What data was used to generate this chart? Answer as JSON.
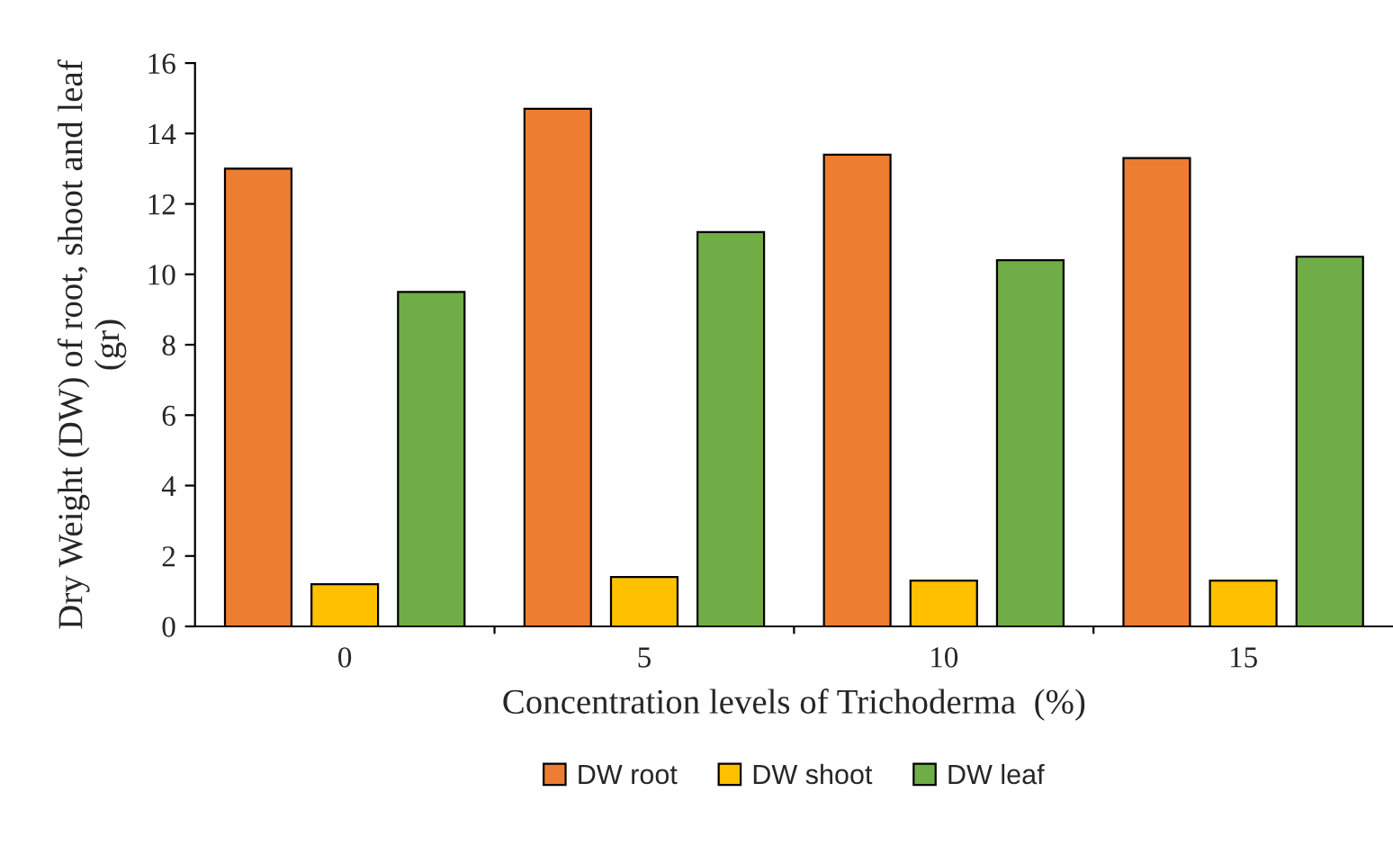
{
  "chart_data": {
    "type": "bar",
    "xlabel": "Concentration levels of Trichoderma  (%)",
    "ylabel": "Dry Weight (DW) of root, shoot and leaf\n(gr)",
    "categories": [
      "0",
      "5",
      "10",
      "15"
    ],
    "series": [
      {
        "name": "DW root",
        "color": "#ed7d31",
        "values": [
          13.0,
          14.7,
          13.4,
          13.3
        ]
      },
      {
        "name": "DW shoot",
        "color": "#ffc000",
        "values": [
          1.2,
          1.4,
          1.3,
          1.3
        ]
      },
      {
        "name": "DW leaf",
        "color": "#70ad47",
        "values": [
          9.5,
          11.2,
          10.4,
          10.5
        ]
      }
    ],
    "ylim": [
      0,
      16
    ],
    "yticks": [
      0,
      2,
      4,
      6,
      8,
      10,
      12,
      14,
      16
    ],
    "grid": false,
    "legend": "bottom"
  }
}
